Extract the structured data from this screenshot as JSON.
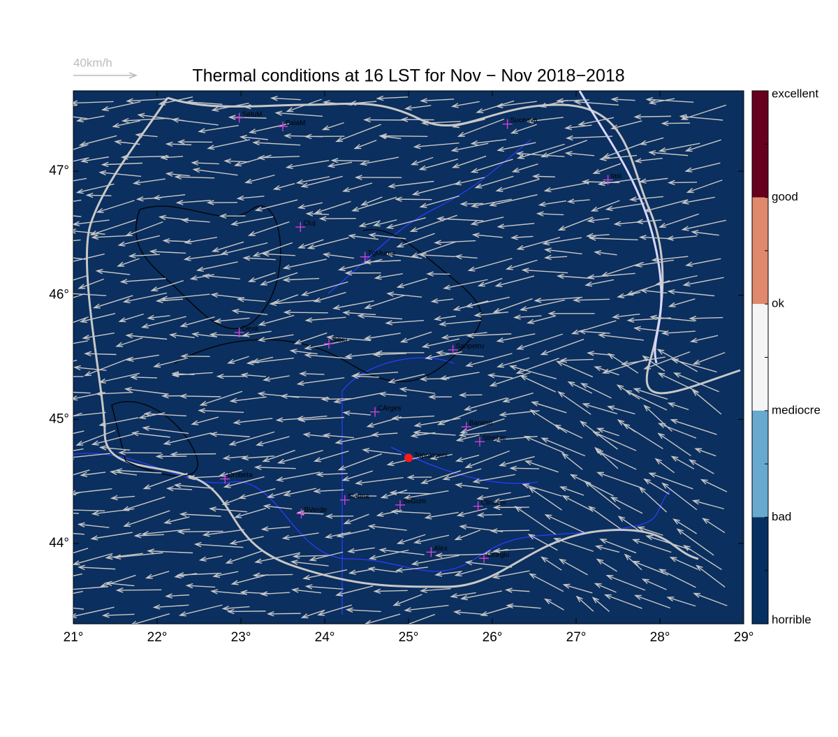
{
  "map": {
    "title": "Thermal conditions at 16 LST for Nov − Nov  2018−2018",
    "wind_scale_label": "40km/h",
    "lon_range": [
      21,
      29
    ],
    "lat_range": [
      43.352,
      47.648
    ],
    "xticks": [
      {
        "value": 21,
        "label": "21°"
      },
      {
        "value": 22,
        "label": "22°"
      },
      {
        "value": 23,
        "label": "23°"
      },
      {
        "value": 24,
        "label": "24°"
      },
      {
        "value": 25,
        "label": "25°"
      },
      {
        "value": 26,
        "label": "26°"
      },
      {
        "value": 27,
        "label": "27°"
      },
      {
        "value": 28,
        "label": "28°"
      },
      {
        "value": 29,
        "label": "29°"
      }
    ],
    "yticks": [
      {
        "value": 44,
        "label": "44°"
      },
      {
        "value": 45,
        "label": "45°"
      },
      {
        "value": 46,
        "label": "46°"
      },
      {
        "value": 47,
        "label": "47°"
      }
    ],
    "colorbar": [
      {
        "label": "excellent",
        "color": "#67001f"
      },
      {
        "label": "good",
        "color": "#e0896c"
      },
      {
        "label": "ok",
        "color": "#f5f5f5"
      },
      {
        "label": "mediocre",
        "color": "#67a9cf"
      },
      {
        "label": "bad",
        "color": "#053061"
      },
      {
        "label": "horrible"
      }
    ],
    "map_color": "#0b2f5e",
    "cities": [
      {
        "name": "SatuM",
        "lon": 22.98,
        "lat": 47.43
      },
      {
        "name": "BaiaM",
        "lon": 23.5,
        "lat": 47.36
      },
      {
        "name": "Suceava",
        "lon": 26.18,
        "lat": 47.38
      },
      {
        "name": "Iasi",
        "lon": 27.38,
        "lat": 46.93
      },
      {
        "name": "Cluj",
        "lon": 23.71,
        "lat": 46.55
      },
      {
        "name": "TgMures",
        "lon": 24.48,
        "lat": 46.31
      },
      {
        "name": "Deva",
        "lon": 22.98,
        "lat": 45.7
      },
      {
        "name": "Sibiu",
        "lon": 24.05,
        "lat": 45.61
      },
      {
        "name": "Sanpetru",
        "lon": 25.53,
        "lat": 45.56
      },
      {
        "name": "CArges",
        "lon": 24.6,
        "lat": 45.06
      },
      {
        "name": "Banesti",
        "lon": 25.69,
        "lat": 44.94
      },
      {
        "name": "Strejnic",
        "lon": 25.85,
        "lat": 44.82
      },
      {
        "name": "Drobeta",
        "lon": 22.81,
        "lat": 44.52
      },
      {
        "name": "Slatina",
        "lon": 24.24,
        "lat": 44.35
      },
      {
        "name": "SilGum",
        "lon": 24.9,
        "lat": 44.31
      },
      {
        "name": "Clinceni",
        "lon": 25.83,
        "lat": 44.3
      },
      {
        "name": "BVerde",
        "lon": 23.72,
        "lat": 44.24
      },
      {
        "name": "Alex",
        "lon": 25.27,
        "lat": 43.93
      },
      {
        "name": "Giurgiu",
        "lon": 25.9,
        "lat": 43.88
      }
    ],
    "site": {
      "name": "Topoloveni",
      "lon": 25.0,
      "lat": 44.69
    }
  }
}
